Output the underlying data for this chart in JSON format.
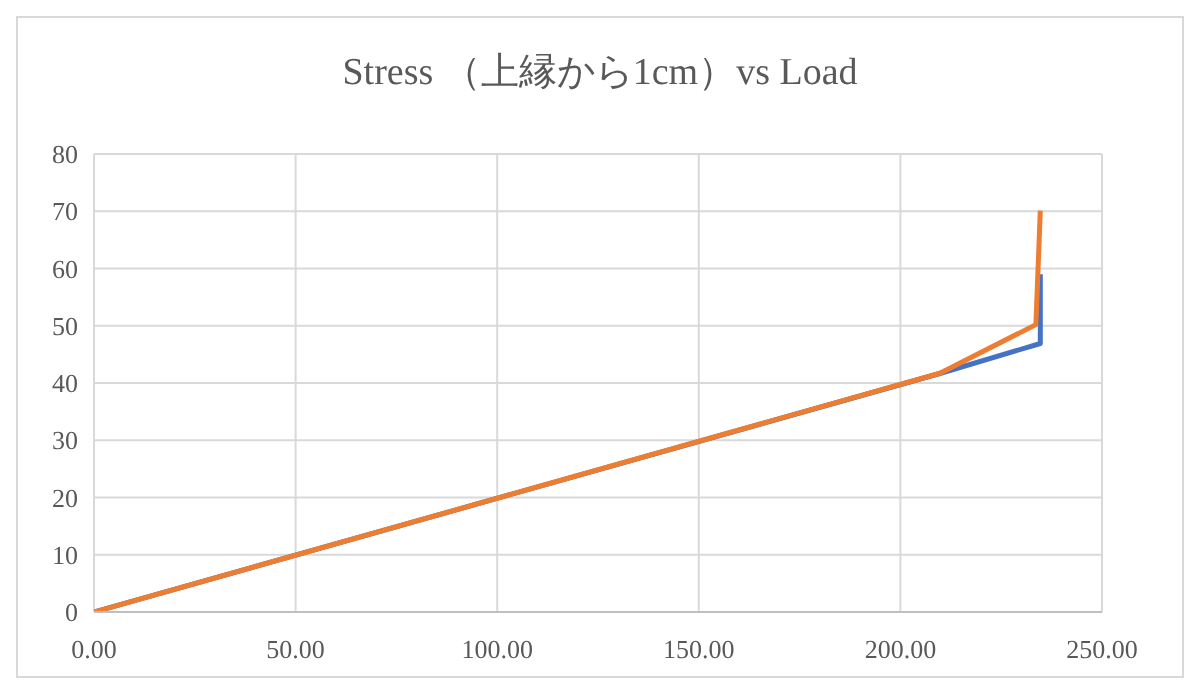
{
  "chart_data": {
    "type": "line",
    "title": "Stress （上縁から1cm）vs Load",
    "xlim": [
      0,
      250
    ],
    "xticks": [
      {
        "value": 0,
        "label": "0.00"
      },
      {
        "value": 50,
        "label": "50.00"
      },
      {
        "value": 100,
        "label": "100.00"
      },
      {
        "value": 150,
        "label": "150.00"
      },
      {
        "value": 200,
        "label": "200.00"
      },
      {
        "value": 250,
        "label": "250.00"
      }
    ],
    "ylim": [
      0,
      80
    ],
    "yticks": [
      0,
      10,
      20,
      30,
      40,
      50,
      60,
      70,
      80
    ],
    "grid": true,
    "legend": false,
    "marker": "none",
    "line_style": "solid",
    "series": [
      {
        "color": "#4472c4",
        "x": [
          0,
          210,
          234.7,
          234.7
        ],
        "values": [
          0,
          41.7,
          46.9,
          59
        ]
      },
      {
        "color": "#ed7d31",
        "x": [
          0,
          209.8,
          233.6,
          234.7
        ],
        "values": [
          0,
          41.7,
          50.2,
          70.1
        ]
      }
    ]
  }
}
